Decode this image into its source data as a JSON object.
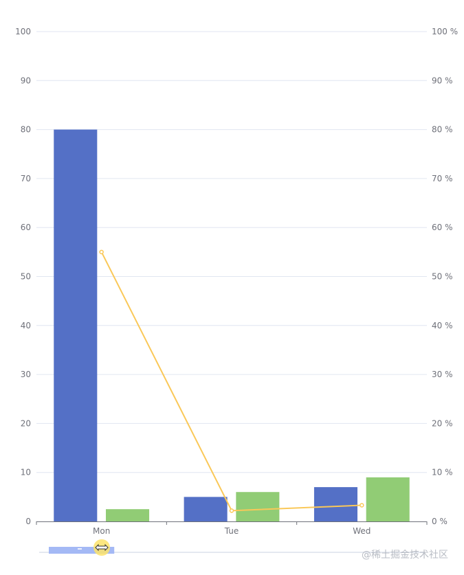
{
  "chart_data": {
    "type": "bar",
    "categories": [
      "Mon",
      "Tue",
      "Wed"
    ],
    "series": [
      {
        "type": "bar",
        "values": [
          80,
          5,
          7
        ],
        "color": "#5470c6",
        "y_axis": "left"
      },
      {
        "type": "bar",
        "values": [
          2.5,
          6,
          9
        ],
        "color": "#91cc75",
        "y_axis": "left"
      },
      {
        "type": "line",
        "values": [
          55,
          2.2,
          3.3
        ],
        "color": "#fac858",
        "y_axis": "right"
      }
    ],
    "y_left": {
      "min": 0,
      "max": 100,
      "ticks": [
        "0",
        "10",
        "20",
        "30",
        "40",
        "50",
        "60",
        "70",
        "80",
        "90",
        "100"
      ]
    },
    "y_right": {
      "min": 0,
      "max": 100,
      "ticks": [
        "0 %",
        "10 %",
        "20 %",
        "30 %",
        "40 %",
        "50 %",
        "60 %",
        "70 %",
        "80 %",
        "90 %",
        "100 %"
      ]
    },
    "grid": true,
    "datazoom": {
      "start": 0,
      "end": 17
    },
    "colors": {
      "axis_line": "#6e7079",
      "split_line": "#e0e6f1",
      "slider_fill": "#a4b9f5",
      "slider_handle": "#fde36b"
    }
  },
  "watermark": "@稀土掘金技术社区"
}
